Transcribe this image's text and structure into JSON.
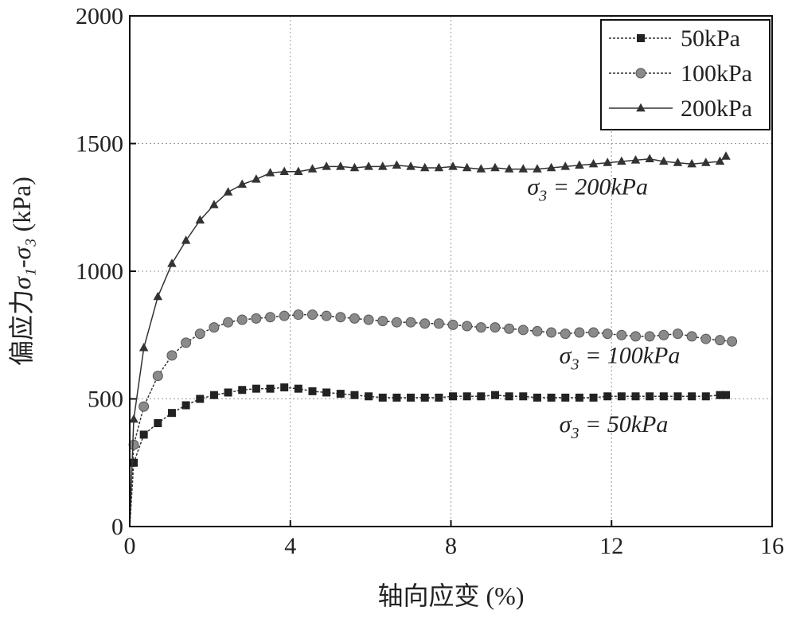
{
  "chart_data": {
    "type": "line",
    "title": "",
    "xlabel": "轴向应变 (%)",
    "ylabel_prefix": "偏应力",
    "ylabel_math": "σ₁-σ₃",
    "ylabel_suffix": "(kPa)",
    "xlim": [
      0,
      16
    ],
    "ylim": [
      0,
      2000
    ],
    "xticks": [
      0,
      4,
      8,
      12,
      16
    ],
    "xtick_labels": [
      "0",
      "4",
      "8",
      "12",
      "16"
    ],
    "yticks": [
      0,
      500,
      1000,
      1500,
      2000
    ],
    "ytick_labels": [
      "0",
      "500",
      "1000",
      "1500",
      "2000"
    ],
    "grid": true,
    "legend_position": "top-right",
    "series": [
      {
        "name": "50kPa",
        "marker": "square",
        "x": [
          0,
          0.1,
          0.35,
          0.7,
          1.05,
          1.4,
          1.75,
          2.1,
          2.45,
          2.8,
          3.15,
          3.5,
          3.85,
          4.2,
          4.55,
          4.9,
          5.25,
          5.6,
          5.95,
          6.3,
          6.65,
          7.0,
          7.35,
          7.7,
          8.05,
          8.4,
          8.75,
          9.1,
          9.45,
          9.8,
          10.15,
          10.5,
          10.85,
          11.2,
          11.55,
          11.9,
          12.25,
          12.6,
          12.95,
          13.3,
          13.65,
          14.0,
          14.35,
          14.7,
          14.85
        ],
        "y": [
          0,
          250,
          360,
          405,
          445,
          475,
          500,
          515,
          525,
          535,
          540,
          540,
          545,
          540,
          530,
          525,
          520,
          515,
          510,
          505,
          505,
          505,
          505,
          505,
          510,
          510,
          510,
          515,
          510,
          510,
          505,
          505,
          505,
          505,
          505,
          510,
          510,
          510,
          510,
          510,
          510,
          510,
          510,
          515,
          515
        ]
      },
      {
        "name": "100kPa",
        "marker": "circle",
        "x": [
          0,
          0.1,
          0.35,
          0.7,
          1.05,
          1.4,
          1.75,
          2.1,
          2.45,
          2.8,
          3.15,
          3.5,
          3.85,
          4.2,
          4.55,
          4.9,
          5.25,
          5.6,
          5.95,
          6.3,
          6.65,
          7.0,
          7.35,
          7.7,
          8.05,
          8.4,
          8.75,
          9.1,
          9.45,
          9.8,
          10.15,
          10.5,
          10.85,
          11.2,
          11.55,
          11.9,
          12.25,
          12.6,
          12.95,
          13.3,
          13.65,
          14.0,
          14.35,
          14.7,
          15.0
        ],
        "y": [
          0,
          320,
          470,
          590,
          670,
          720,
          755,
          780,
          800,
          810,
          815,
          820,
          825,
          830,
          830,
          825,
          820,
          815,
          810,
          805,
          800,
          800,
          795,
          795,
          790,
          785,
          780,
          780,
          775,
          770,
          765,
          760,
          755,
          760,
          760,
          755,
          750,
          745,
          745,
          750,
          755,
          745,
          735,
          730,
          725
        ]
      },
      {
        "name": "200kPa",
        "marker": "triangle",
        "x": [
          0,
          0.1,
          0.35,
          0.7,
          1.05,
          1.4,
          1.75,
          2.1,
          2.45,
          2.8,
          3.15,
          3.5,
          3.85,
          4.2,
          4.55,
          4.9,
          5.25,
          5.6,
          5.95,
          6.3,
          6.65,
          7.0,
          7.35,
          7.7,
          8.05,
          8.4,
          8.75,
          9.1,
          9.45,
          9.8,
          10.15,
          10.5,
          10.85,
          11.2,
          11.55,
          11.9,
          12.25,
          12.6,
          12.95,
          13.3,
          13.65,
          14.0,
          14.35,
          14.7,
          14.85
        ],
        "y": [
          0,
          420,
          700,
          900,
          1030,
          1120,
          1200,
          1260,
          1310,
          1340,
          1360,
          1385,
          1390,
          1390,
          1400,
          1410,
          1410,
          1405,
          1410,
          1410,
          1415,
          1410,
          1405,
          1405,
          1410,
          1405,
          1400,
          1405,
          1400,
          1400,
          1400,
          1405,
          1410,
          1415,
          1420,
          1425,
          1430,
          1435,
          1440,
          1430,
          1425,
          1420,
          1425,
          1430,
          1450
        ]
      }
    ],
    "annotations": [
      {
        "sub": "3",
        "text": " = 200kPa",
        "x": 9.9,
        "y": 1300
      },
      {
        "sub": "3",
        "text": " = 100kPa",
        "x": 10.7,
        "y": 640
      },
      {
        "sub": "3",
        "text": " = 50kPa",
        "x": 10.7,
        "y": 370
      }
    ],
    "colors": {
      "line": "#333333",
      "marker_square": "#222222",
      "marker_circle": "#8a8a8a",
      "marker_triangle": "#333333",
      "grid": "#9a9a9a",
      "frame": "#111111"
    }
  }
}
